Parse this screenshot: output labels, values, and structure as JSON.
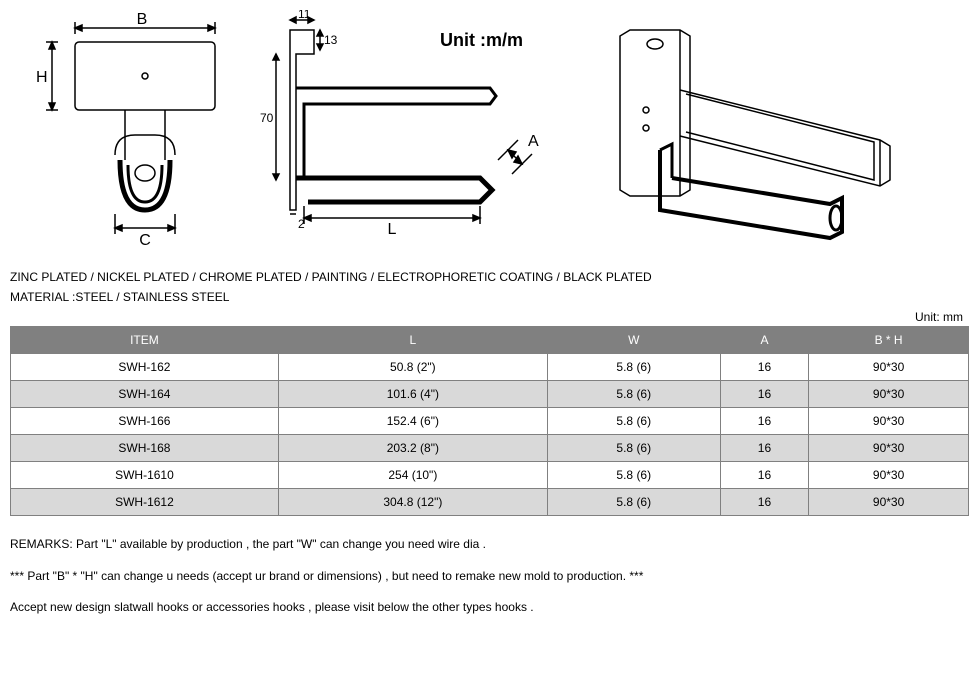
{
  "diagram": {
    "unit_label": "Unit :m/m",
    "dims": {
      "B": "B",
      "H": "H",
      "C": "C",
      "d11": "11",
      "d13": "13",
      "d70": "70",
      "d2": "2",
      "L": "L",
      "A": "A"
    }
  },
  "spec_line1": "ZINC PLATED / NICKEL PLATED / CHROME PLATED / PAINTING / ELECTROPHORETIC COATING / BLACK PLATED",
  "spec_line2": "MATERIAL :STEEL / STAINLESS STEEL",
  "unit_mm": "Unit: mm",
  "table": {
    "header_bg": "#808080",
    "header_fg": "#ffffff",
    "alt_bg": "#d9d9d9",
    "border": "#808080",
    "columns": [
      "ITEM",
      "L",
      "W",
      "A",
      "B * H"
    ],
    "rows": [
      [
        "SWH-162",
        "50.8 (2\")",
        "5.8 (6)",
        "16",
        "90*30"
      ],
      [
        "SWH-164",
        "101.6 (4\")",
        "5.8 (6)",
        "16",
        "90*30"
      ],
      [
        "SWH-166",
        "152.4 (6\")",
        "5.8 (6)",
        "16",
        "90*30"
      ],
      [
        "SWH-168",
        "203.2 (8\")",
        "5.8 (6)",
        "16",
        "90*30"
      ],
      [
        "SWH-1610",
        "254 (10\")",
        "5.8 (6)",
        "16",
        "90*30"
      ],
      [
        "SWH-1612",
        "304.8 (12\")",
        "5.8 (6)",
        "16",
        "90*30"
      ]
    ]
  },
  "remarks": {
    "r1": "REMARKS: Part \"L\" available by production , the part \"W\" can change you need wire dia .",
    "r2": "*** Part \"B\" * \"H\" can change u needs (accept ur brand or dimensions) , but need to remake new mold to production. ***",
    "r3": "Accept new design slatwall hooks or accessories hooks , please visit below the other types hooks ."
  }
}
